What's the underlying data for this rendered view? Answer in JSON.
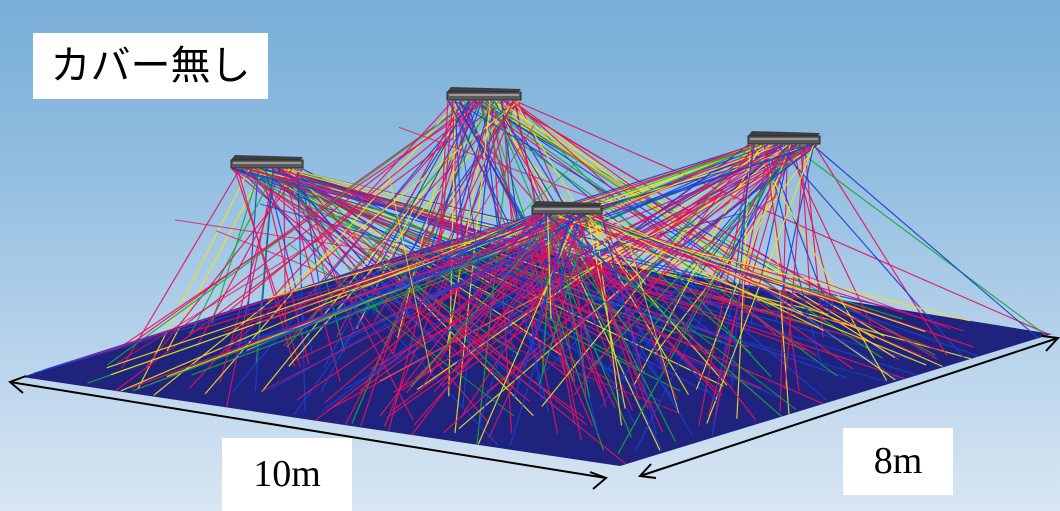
{
  "title": "カバー無し",
  "dimensions": {
    "width_label": "10m",
    "depth_label": "8m"
  },
  "colors": {
    "floor": "#1f237e",
    "ray_colors": [
      "#e0135d",
      "#e0135d",
      "#e0135d",
      "#1a3fd0",
      "#1a3fd0",
      "#f0e020",
      "#19a838"
    ],
    "fixture": "#5a5a5a"
  },
  "fixtures": [
    {
      "name": "fixture-left"
    },
    {
      "name": "fixture-back"
    },
    {
      "name": "fixture-right"
    },
    {
      "name": "fixture-center"
    }
  ]
}
